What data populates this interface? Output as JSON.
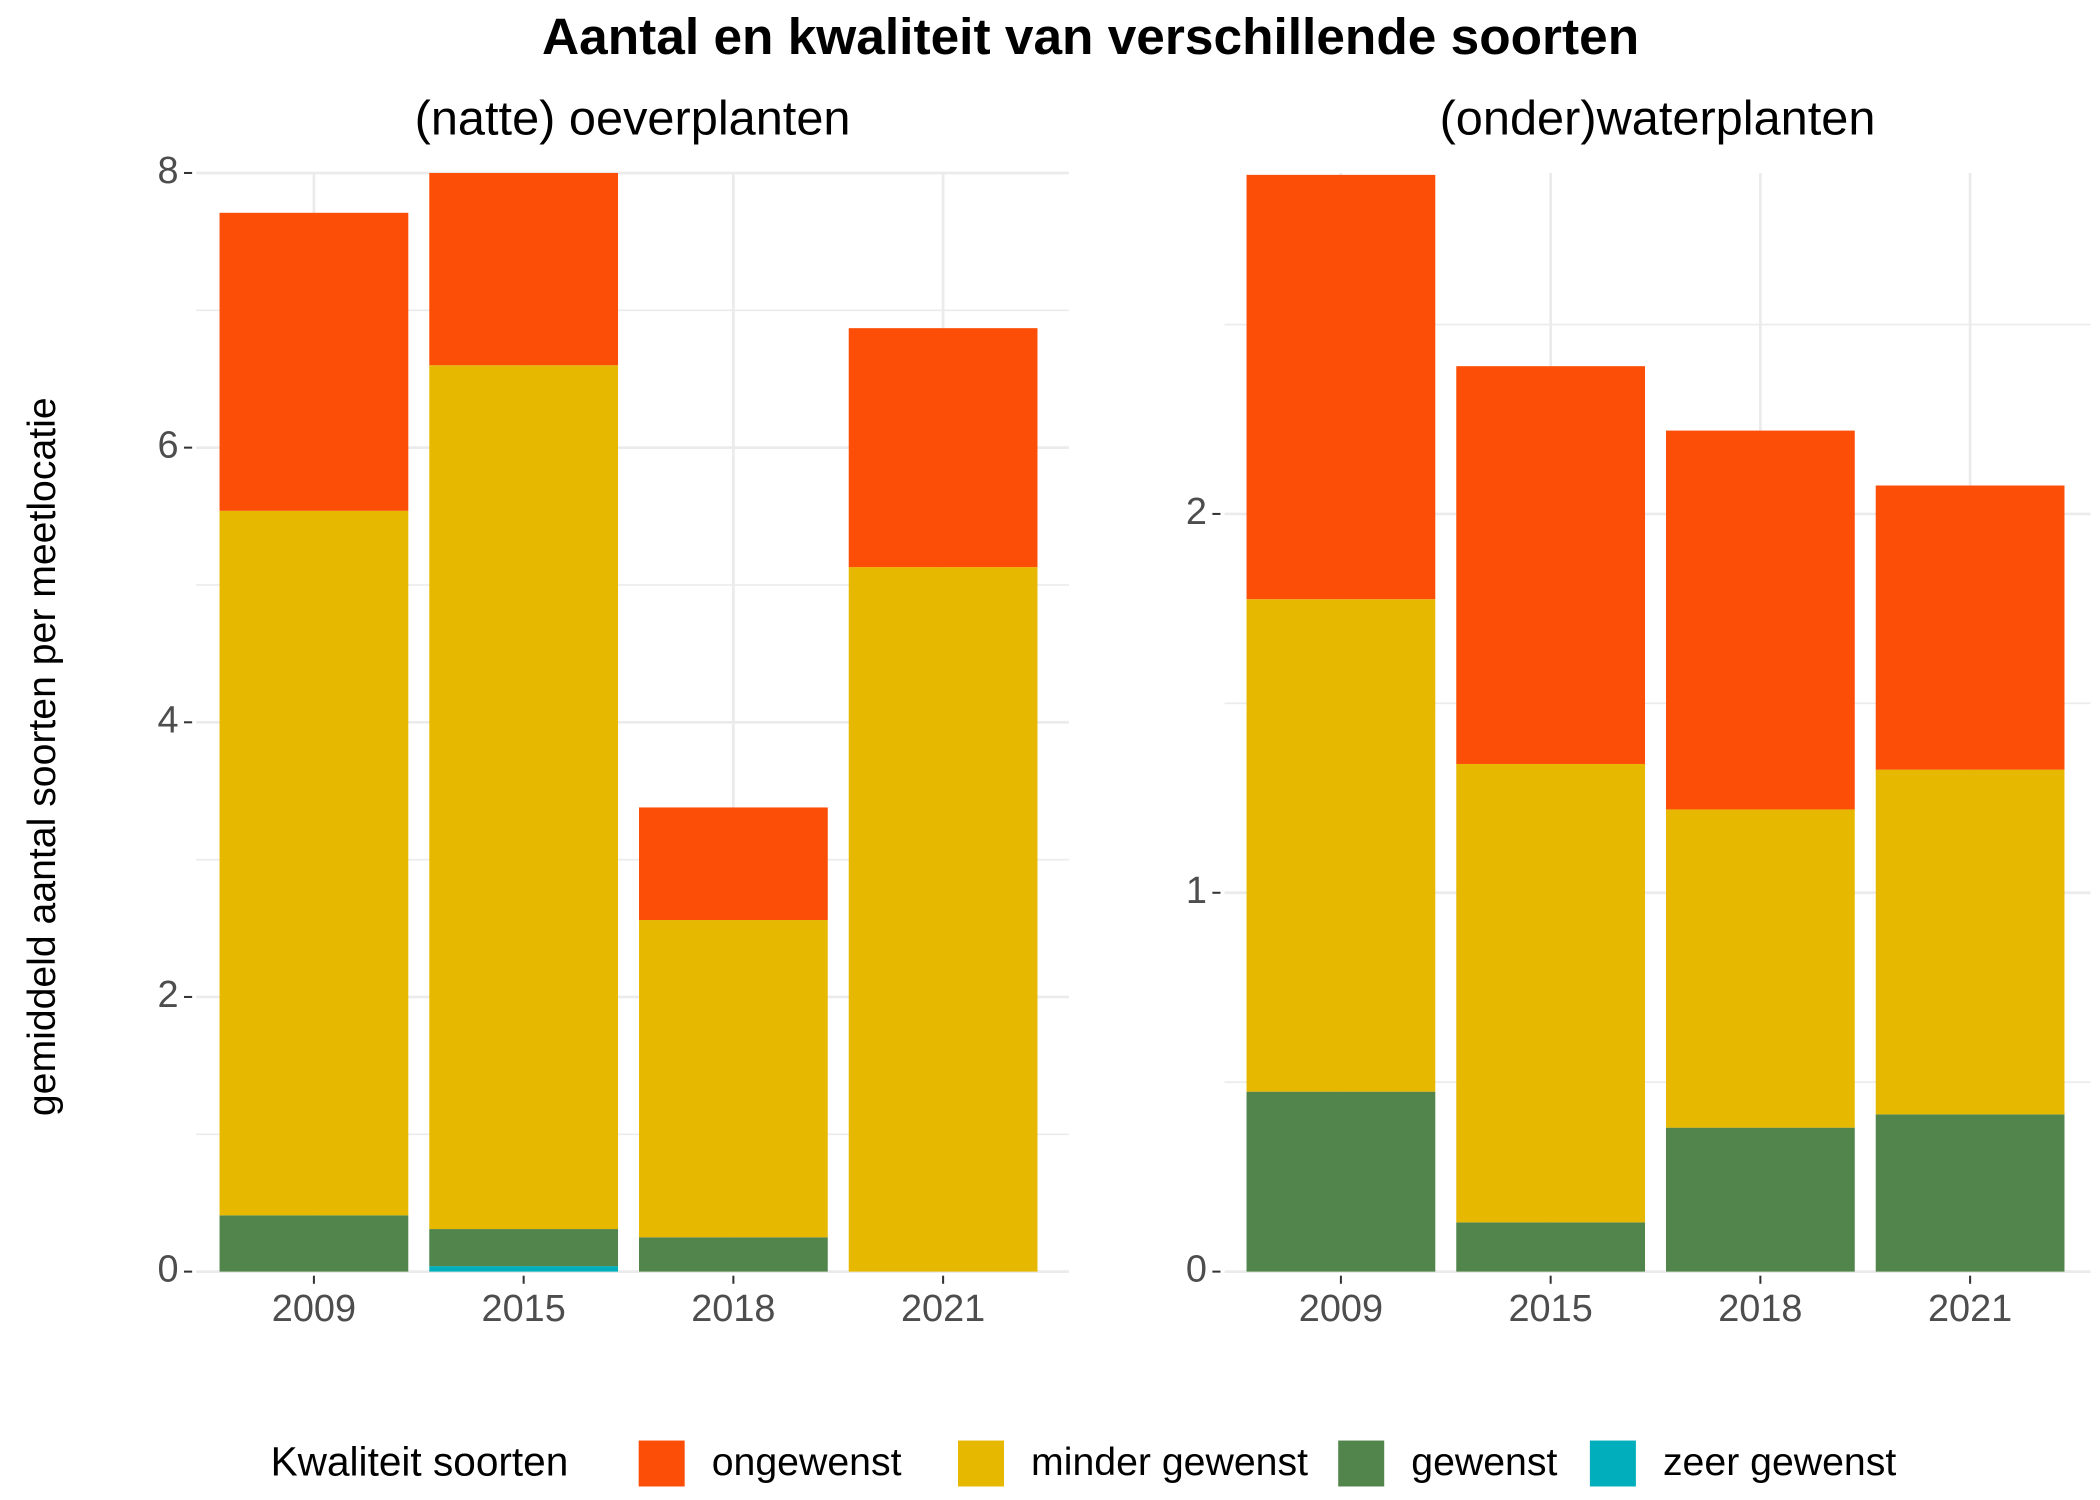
{
  "title": "Aantal en kwaliteit van verschillende soorten",
  "y_label": "gemiddeld aantal soorten per meetlocatie",
  "legend_title": "Kwaliteit soorten",
  "chart_data": [
    {
      "type": "stacked_bar",
      "title": "(natte) oeverplanten",
      "categories": [
        "2009",
        "2015",
        "2018",
        "2021"
      ],
      "series": [
        {
          "name": "ongewenst",
          "color": "#FC4E07",
          "values": [
            2.17,
            1.4,
            0.82,
            1.74
          ]
        },
        {
          "name": "minder gewenst",
          "color": "#E7B800",
          "values": [
            5.13,
            6.29,
            2.31,
            5.13
          ]
        },
        {
          "name": "gewenst",
          "color": "#52854C",
          "values": [
            0.41,
            0.27,
            0.25,
            0
          ]
        },
        {
          "name": "zeer gewenst",
          "color": "#00AFBB",
          "values": [
            0,
            0.04,
            0,
            0
          ]
        }
      ],
      "ylim": [
        0,
        8
      ],
      "yticks": [
        0,
        2,
        4,
        6,
        8
      ],
      "grid": true
    },
    {
      "type": "stacked_bar",
      "title": "(onder)waterplanten",
      "categories": [
        "2009",
        "2015",
        "2018",
        "2021"
      ],
      "series": [
        {
          "name": "ongewenst",
          "color": "#FC4E07",
          "values": [
            1.12,
            1.05,
            1.0,
            0.75
          ]
        },
        {
          "name": "minder gewenst",
          "color": "#E7B800",
          "values": [
            1.3,
            1.21,
            0.84,
            0.91
          ]
        },
        {
          "name": "gewenst",
          "color": "#52854C",
          "values": [
            0.475,
            0.13,
            0.38,
            0.415
          ]
        },
        {
          "name": "zeer gewenst",
          "color": "#00AFBB",
          "values": [
            0,
            0,
            0,
            0
          ]
        }
      ],
      "ylim": [
        0,
        2.9
      ],
      "yticks": [
        0,
        1,
        2
      ],
      "grid": true
    }
  ]
}
